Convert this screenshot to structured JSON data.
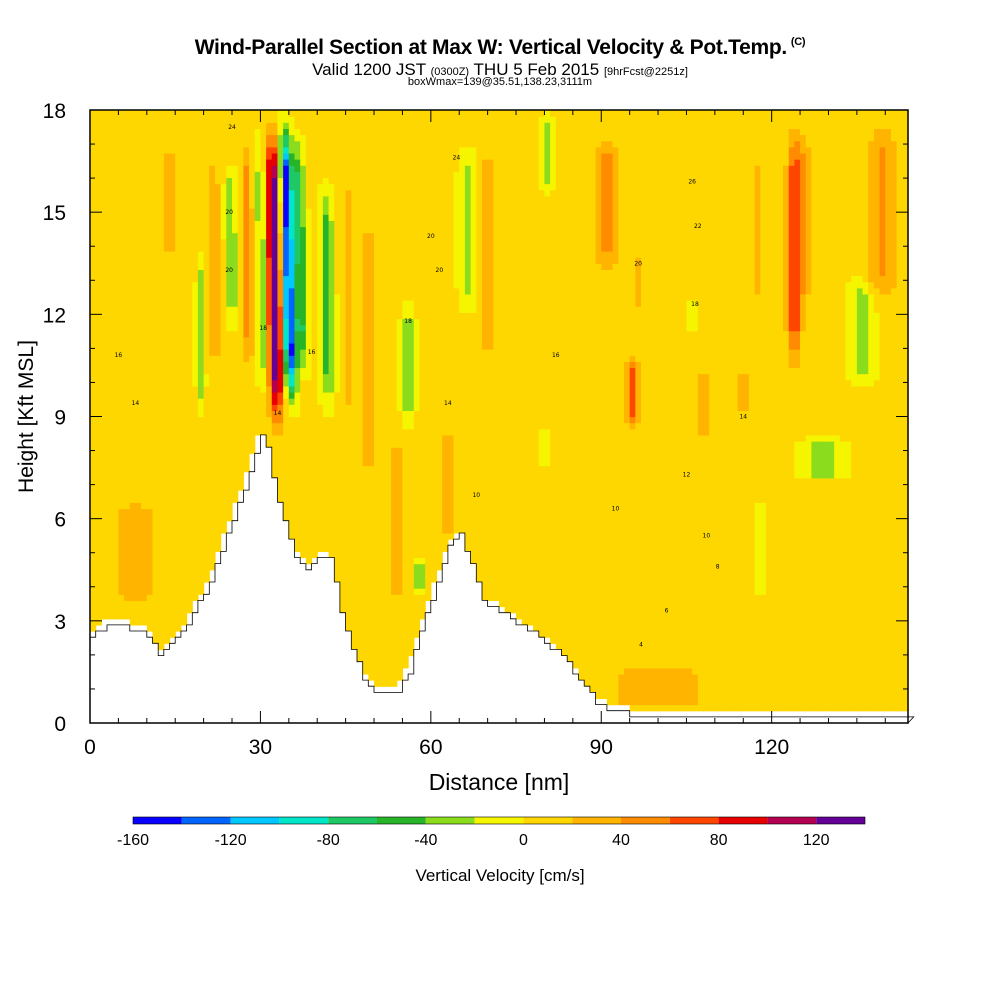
{
  "header": {
    "title": "Wind-Parallel Section at Max W: Vertical Velocity & Pot.Temp.",
    "copyright": "(C)",
    "valid_a": "Valid 1200 JST",
    "valid_b": "(0300Z)",
    "valid_c": "THU 5 Feb 2015",
    "valid_d": "[9hrFcst@2251z]",
    "boxwmax": "boxWmax=139@35.51,138.23,3111m"
  },
  "chart_data": {
    "type": "heatmap",
    "xlabel": "Distance [nm]",
    "ylabel": "Height [Kft MSL]",
    "xlim": [
      0,
      144
    ],
    "ylim": [
      0,
      18
    ],
    "xticks": [
      0,
      30,
      60,
      90,
      120
    ],
    "yticks": [
      0,
      3,
      6,
      9,
      12,
      15,
      18
    ],
    "terrain_kft": [
      [
        0,
        2.6
      ],
      [
        3,
        3.0
      ],
      [
        6,
        2.9
      ],
      [
        9,
        2.8
      ],
      [
        11,
        2.5
      ],
      [
        12,
        2.0
      ],
      [
        14,
        2.4
      ],
      [
        16,
        2.7
      ],
      [
        18,
        3.3
      ],
      [
        21,
        4.2
      ],
      [
        23,
        5.2
      ],
      [
        25,
        6.1
      ],
      [
        27,
        7.0
      ],
      [
        29,
        8.0
      ],
      [
        30,
        8.6
      ],
      [
        31,
        8.1
      ],
      [
        32,
        7.2
      ],
      [
        34,
        6.0
      ],
      [
        36,
        5.0
      ],
      [
        38,
        4.6
      ],
      [
        40,
        4.9
      ],
      [
        42,
        5.0
      ],
      [
        44,
        3.4
      ],
      [
        46,
        2.2
      ],
      [
        48,
        1.4
      ],
      [
        50,
        1.0
      ],
      [
        54,
        1.0
      ],
      [
        56,
        1.6
      ],
      [
        58,
        2.8
      ],
      [
        61,
        4.2
      ],
      [
        63,
        5.3
      ],
      [
        65,
        5.6
      ],
      [
        67,
        4.8
      ],
      [
        69,
        3.6
      ],
      [
        72,
        3.4
      ],
      [
        75,
        3.0
      ],
      [
        78,
        2.7
      ],
      [
        82,
        2.2
      ],
      [
        85,
        1.6
      ],
      [
        87,
        1.1
      ],
      [
        89,
        0.7
      ],
      [
        92,
        0.45
      ],
      [
        95,
        0.35
      ],
      [
        100,
        0.3
      ],
      [
        144,
        0.3
      ]
    ],
    "colorbar": {
      "label": "Vertical Velocity [cm/s]",
      "tick_labels": [
        "-160",
        "-120",
        "-80",
        "-40",
        "0",
        "40",
        "80",
        "120"
      ],
      "tick_values": [
        -160,
        -120,
        -80,
        -40,
        0,
        40,
        80,
        120
      ],
      "min": -160,
      "max": 140,
      "bins": [
        {
          "lo": -160,
          "hi": -140,
          "color": "#0a00ff"
        },
        {
          "lo": -140,
          "hi": -120,
          "color": "#0064ff"
        },
        {
          "lo": -120,
          "hi": -100,
          "color": "#00c8ff"
        },
        {
          "lo": -100,
          "hi": -80,
          "color": "#00e6c8"
        },
        {
          "lo": -80,
          "hi": -60,
          "color": "#1ec864"
        },
        {
          "lo": -60,
          "hi": -40,
          "color": "#28b428"
        },
        {
          "lo": -40,
          "hi": -20,
          "color": "#8cdc1e"
        },
        {
          "lo": -20,
          "hi": 0,
          "color": "#f5f500"
        },
        {
          "lo": 0,
          "hi": 20,
          "color": "#ffd700"
        },
        {
          "lo": 20,
          "hi": 40,
          "color": "#ffb400"
        },
        {
          "lo": 40,
          "hi": 60,
          "color": "#ff8c00"
        },
        {
          "lo": 60,
          "hi": 80,
          "color": "#ff4600"
        },
        {
          "lo": 80,
          "hi": 100,
          "color": "#e60000"
        },
        {
          "lo": 100,
          "hi": 120,
          "color": "#b40050"
        },
        {
          "lo": 120,
          "hi": 140,
          "color": "#640096"
        }
      ]
    },
    "background_w": 2,
    "w_features": [
      {
        "x": 33,
        "w": 133,
        "width": 1.3,
        "z0": 8.2,
        "z1": 18,
        "tilt": -1.0
      },
      {
        "x": 35.5,
        "w": -155,
        "width": 1.1,
        "z0": 9.0,
        "z1": 18,
        "tilt": -1.3
      },
      {
        "x": 37.5,
        "w": -65,
        "width": 0.9,
        "z0": 10,
        "z1": 17.5,
        "tilt": -1.0
      },
      {
        "x": 30.5,
        "w": -50,
        "width": 0.7,
        "z0": 9.5,
        "z1": 17.5,
        "tilt": -0.6
      },
      {
        "x": 28,
        "w": 55,
        "width": 0.8,
        "z0": 10,
        "z1": 17.5,
        "tilt": -0.5
      },
      {
        "x": 25,
        "w": -45,
        "width": 0.8,
        "z0": 11.5,
        "z1": 16.5,
        "tilt": -0.3
      },
      {
        "x": 22,
        "w": 45,
        "width": 0.8,
        "z0": 10,
        "z1": 17,
        "tilt": -0.2
      },
      {
        "x": 19.5,
        "w": -35,
        "width": 0.6,
        "z0": 9,
        "z1": 14,
        "tilt": 0
      },
      {
        "x": 42,
        "w": -55,
        "width": 1.0,
        "z0": 9,
        "z1": 16,
        "tilt": -0.5
      },
      {
        "x": 45.5,
        "w": 25,
        "width": 1.0,
        "z0": 8,
        "z1": 17,
        "tilt": 0
      },
      {
        "x": 49,
        "w": 30,
        "width": 0.9,
        "z0": 6,
        "z1": 16,
        "tilt": 0
      },
      {
        "x": 56,
        "w": -40,
        "width": 0.9,
        "z0": 8.5,
        "z1": 12.5,
        "tilt": 0
      },
      {
        "x": 66.5,
        "w": -40,
        "width": 1.2,
        "z0": 12,
        "z1": 17,
        "tilt": 0
      },
      {
        "x": 54,
        "w": 35,
        "width": 0.9,
        "z0": 3,
        "z1": 9,
        "tilt": 0
      },
      {
        "x": 58,
        "w": -40,
        "width": 0.7,
        "z0": 3.7,
        "z1": 4.9,
        "tilt": 0
      },
      {
        "x": 63,
        "w": 30,
        "width": 1.5,
        "z0": 5,
        "z1": 9,
        "tilt": 0
      },
      {
        "x": 70,
        "w": 35,
        "width": 1.2,
        "z0": 10,
        "z1": 17.5,
        "tilt": 0
      },
      {
        "x": 80,
        "w": -30,
        "width": 0.6,
        "z0": 7.6,
        "z1": 8.7,
        "tilt": 0
      },
      {
        "x": 80.5,
        "w": -30,
        "width": 0.8,
        "z0": 15.5,
        "z1": 18,
        "tilt": 0
      },
      {
        "x": 91,
        "w": 45,
        "width": 2.5,
        "z0": 13,
        "z1": 17.5,
        "tilt": 0
      },
      {
        "x": 95.5,
        "w": 60,
        "width": 1.0,
        "z0": 8.5,
        "z1": 11,
        "tilt": 0
      },
      {
        "x": 96.5,
        "w": 25,
        "width": 1.5,
        "z0": 12,
        "z1": 14,
        "tilt": 0
      },
      {
        "x": 106,
        "w": -40,
        "width": 0.6,
        "z0": 11.5,
        "z1": 12.5,
        "tilt": 0
      },
      {
        "x": 108,
        "w": 45,
        "width": 1.0,
        "z0": 8.2,
        "z1": 10.5,
        "tilt": 0
      },
      {
        "x": 115,
        "w": 45,
        "width": 1.0,
        "z0": 9.0,
        "z1": 10.5,
        "tilt": 0
      },
      {
        "x": 117.5,
        "w": 30,
        "width": 1.0,
        "z0": 12,
        "z1": 17,
        "tilt": 0
      },
      {
        "x": 118,
        "w": -30,
        "width": 0.7,
        "z0": 3.8,
        "z1": 6.5,
        "tilt": 0
      },
      {
        "x": 124,
        "w": 70,
        "width": 1.3,
        "z0": 10,
        "z1": 18,
        "tilt": 0
      },
      {
        "x": 126,
        "w": 45,
        "width": 1.0,
        "z0": 12,
        "z1": 17.5,
        "tilt": 0
      },
      {
        "x": 129,
        "w": -40,
        "width": 3,
        "z0": 7.1,
        "z1": 8.4,
        "tilt": 0
      },
      {
        "x": 136,
        "w": -40,
        "width": 1.8,
        "z0": 9.8,
        "z1": 13.2,
        "tilt": 0
      },
      {
        "x": 139.5,
        "w": 40,
        "width": 3,
        "z0": 12,
        "z1": 18,
        "tilt": 0
      },
      {
        "x": 100,
        "w": 25,
        "width": 12,
        "z0": 0.3,
        "z1": 1.8,
        "tilt": 0
      },
      {
        "x": 8,
        "w": 25,
        "width": 5,
        "z0": 3,
        "z1": 7,
        "tilt": 0
      },
      {
        "x": 14,
        "w": 20,
        "width": 3,
        "z0": 13,
        "z1": 17.5,
        "tilt": 0
      }
    ],
    "isentrope_bases_kft": [
      1.0,
      1.8,
      2.7,
      3.6,
      4.5,
      5.3,
      6.1,
      6.9,
      7.6,
      8.3,
      9.0,
      9.7,
      10.3,
      11.0,
      11.6,
      12.2,
      12.8,
      13.4,
      14.0,
      14.6,
      15.2,
      15.8,
      16.4,
      17.0,
      17.5
    ],
    "isentrope_labels": [
      {
        "x": 8,
        "z": 9.4,
        "text": "14"
      },
      {
        "x": 5,
        "z": 10.8,
        "text": "16"
      },
      {
        "x": 24.5,
        "z": 13.3,
        "text": "20"
      },
      {
        "x": 24.5,
        "z": 15.0,
        "text": "20"
      },
      {
        "x": 25,
        "z": 17.5,
        "text": "24"
      },
      {
        "x": 30.5,
        "z": 11.6,
        "text": "18"
      },
      {
        "x": 33,
        "z": 9.1,
        "text": "14"
      },
      {
        "x": 39,
        "z": 10.9,
        "text": "16"
      },
      {
        "x": 56,
        "z": 11.8,
        "text": "18"
      },
      {
        "x": 60,
        "z": 14.3,
        "text": "20"
      },
      {
        "x": 64.5,
        "z": 16.6,
        "text": "24"
      },
      {
        "x": 61.5,
        "z": 13.3,
        "text": "20"
      },
      {
        "x": 63,
        "z": 9.4,
        "text": "14"
      },
      {
        "x": 68,
        "z": 6.7,
        "text": "10"
      },
      {
        "x": 82,
        "z": 10.8,
        "text": "16"
      },
      {
        "x": 96.5,
        "z": 13.5,
        "text": "20"
      },
      {
        "x": 106,
        "z": 15.9,
        "text": "26"
      },
      {
        "x": 107,
        "z": 14.6,
        "text": "22"
      },
      {
        "x": 106.5,
        "z": 12.3,
        "text": "18"
      },
      {
        "x": 92.5,
        "z": 6.3,
        "text": "10"
      },
      {
        "x": 105,
        "z": 7.3,
        "text": "12"
      },
      {
        "x": 108.5,
        "z": 5.5,
        "text": "10"
      },
      {
        "x": 110.5,
        "z": 4.6,
        "text": "8"
      },
      {
        "x": 101.5,
        "z": 3.3,
        "text": "6"
      },
      {
        "x": 97,
        "z": 2.3,
        "text": "4"
      },
      {
        "x": 115,
        "z": 9.0,
        "text": "14"
      }
    ]
  }
}
